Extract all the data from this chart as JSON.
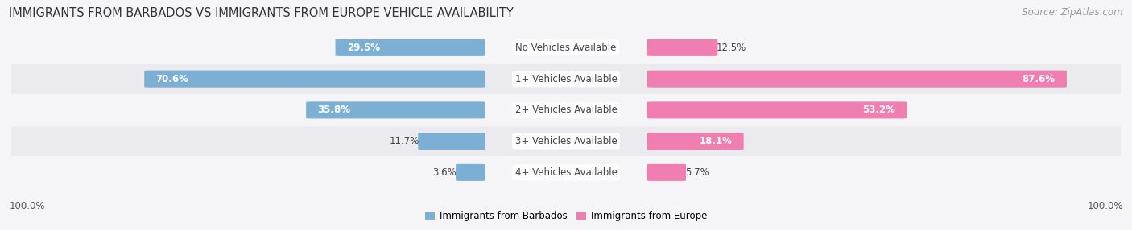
{
  "title": "IMMIGRANTS FROM BARBADOS VS IMMIGRANTS FROM EUROPE VEHICLE AVAILABILITY",
  "source": "Source: ZipAtlas.com",
  "categories": [
    "No Vehicles Available",
    "1+ Vehicles Available",
    "2+ Vehicles Available",
    "3+ Vehicles Available",
    "4+ Vehicles Available"
  ],
  "barbados_values": [
    29.5,
    70.6,
    35.8,
    11.7,
    3.6
  ],
  "europe_values": [
    12.5,
    87.6,
    53.2,
    18.1,
    5.7
  ],
  "barbados_color": "#7bafd4",
  "europe_color": "#f07eb0",
  "legend_barbados": "Immigrants from Barbados",
  "legend_europe": "Immigrants from Europe",
  "max_val": 100.0,
  "title_fontsize": 10.5,
  "label_fontsize": 8.5,
  "value_fontsize": 8.5,
  "source_fontsize": 8.5,
  "row_colors": [
    "#f5f5f8",
    "#eaeaef"
  ],
  "fig_bg": "#f5f5f8"
}
